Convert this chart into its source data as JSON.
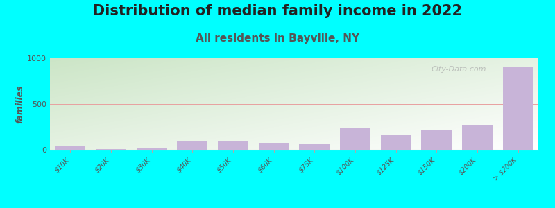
{
  "title": "Distribution of median family income in 2022",
  "subtitle": "All residents in Bayville, NY",
  "ylabel": "families",
  "background_color": "#00FFFF",
  "bar_color": "#c8b4d8",
  "grid_color": "#e8a0a0",
  "categories": [
    "$10K",
    "$20K",
    "$30K",
    "$40K",
    "$50K",
    "$60K",
    "$75K",
    "$100K",
    "$125K",
    "$150K",
    "$200K",
    "> $200K"
  ],
  "values": [
    35,
    5,
    15,
    95,
    90,
    75,
    60,
    240,
    165,
    210,
    265,
    900
  ],
  "ylim": [
    0,
    1000
  ],
  "yticks": [
    0,
    500,
    1000
  ],
  "watermark": "City-Data.com",
  "title_fontsize": 15,
  "subtitle_fontsize": 11,
  "subtitle_color": "#555555",
  "title_color": "#222222"
}
